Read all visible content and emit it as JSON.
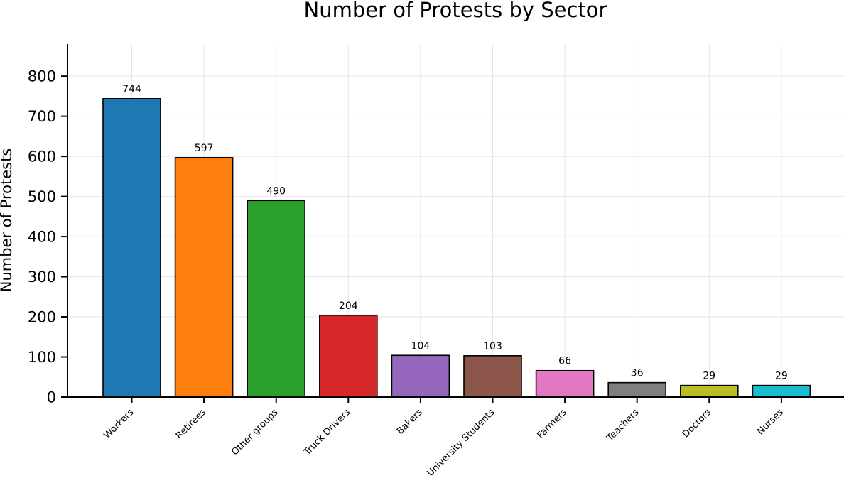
{
  "chart_data": {
    "type": "bar",
    "title": "Number of Protests by Sector",
    "xlabel": "",
    "ylabel": "Number of Protests",
    "categories": [
      "Workers",
      "Retirees",
      "Other groups",
      "Truck Drivers",
      "Bakers",
      "University Students",
      "Farmers",
      "Teachers",
      "Doctors",
      "Nurses"
    ],
    "values": [
      744,
      597,
      490,
      204,
      104,
      103,
      66,
      36,
      29,
      29
    ],
    "colors": [
      "#1f77b4",
      "#ff7f0e",
      "#2ca02c",
      "#d62728",
      "#9467bd",
      "#8c564b",
      "#e377c2",
      "#7f7f7f",
      "#bcbd22",
      "#17becf"
    ],
    "ylim": [
      0,
      880
    ],
    "yticks": [
      0,
      100,
      200,
      300,
      400,
      500,
      600,
      700,
      800
    ],
    "grid": true,
    "data_labels": true
  }
}
